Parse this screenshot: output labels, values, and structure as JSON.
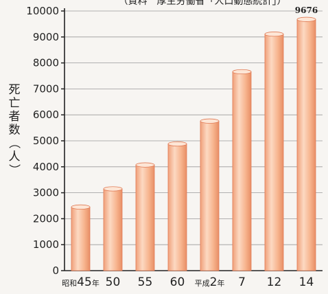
{
  "title": "（資料　厚生労働省「人口動態統計」）",
  "chart_data": {
    "type": "bar",
    "title": "（資料　厚生労働省「人口動態統計」）",
    "ylabel": "死亡者数（人）",
    "xlabel": "",
    "categories": [
      {
        "era": "昭和",
        "num": "45",
        "suffix": "年"
      },
      {
        "era": "",
        "num": "50",
        "suffix": ""
      },
      {
        "era": "",
        "num": "55",
        "suffix": ""
      },
      {
        "era": "",
        "num": "60",
        "suffix": ""
      },
      {
        "era": "平成",
        "num": "2",
        "suffix": "年"
      },
      {
        "era": "",
        "num": "7",
        "suffix": ""
      },
      {
        "era": "",
        "num": "12",
        "suffix": ""
      },
      {
        "era": "",
        "num": "14",
        "suffix": ""
      }
    ],
    "values": [
      2450,
      3150,
      4070,
      4880,
      5760,
      7660,
      9110,
      9676
    ],
    "data_labels": [
      "",
      "",
      "",
      "",
      "",
      "",
      "",
      "9676"
    ],
    "ylim": [
      0,
      10000
    ],
    "yticks": [
      "0",
      "1000",
      "2000",
      "3000",
      "4000",
      "5000",
      "6000",
      "7000",
      "8000",
      "9000",
      "10000"
    ],
    "grid": true,
    "bar_color": "#f6b98f"
  }
}
